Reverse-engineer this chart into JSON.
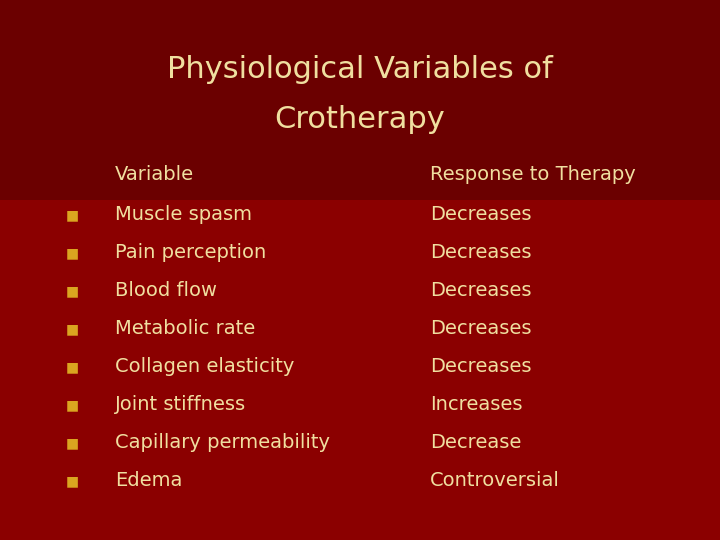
{
  "title_line1": "Physiological Variables of",
  "title_line2": "Crotherapy",
  "title_color": "#F0DFA0",
  "background_color": "#8B0000",
  "title_bg_color": "#6B0000",
  "text_color": "#F0DFA0",
  "bullet_color": "#DAA520",
  "header_variable": "Variable",
  "header_response": "Response to Therapy",
  "rows": [
    {
      "variable": "Muscle spasm",
      "response": "Decreases"
    },
    {
      "variable": "Pain perception",
      "response": "Decreases"
    },
    {
      "variable": "Blood flow",
      "response": "Decreases"
    },
    {
      "variable": "Metabolic rate",
      "response": "Decreases"
    },
    {
      "variable": "Collagen elasticity",
      "response": "Decreases"
    },
    {
      "variable": "Joint stiffness",
      "response": "Increases"
    },
    {
      "variable": "Capillary permeability",
      "response": "Decrease"
    },
    {
      "variable": "Edema",
      "response": "Controversial"
    }
  ],
  "title_fontsize": 22,
  "header_fontsize": 14,
  "body_fontsize": 14,
  "bullet_fontsize": 10
}
